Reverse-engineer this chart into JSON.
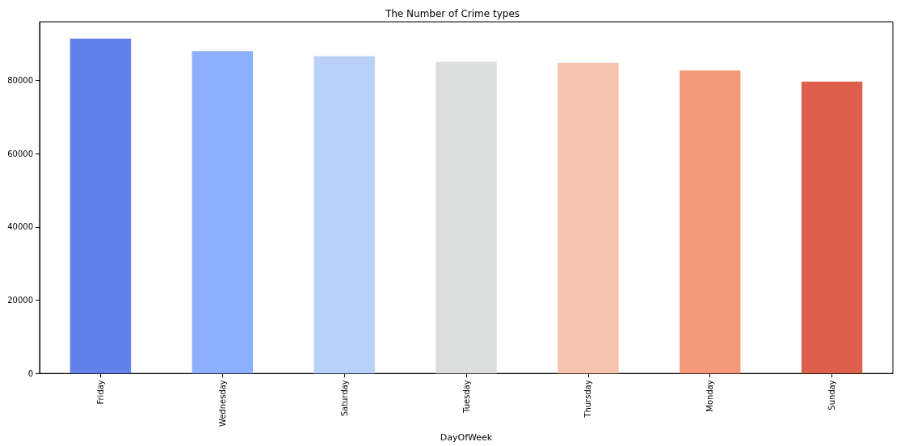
{
  "chart_data": {
    "type": "bar",
    "title": "The Number of Crime types",
    "xlabel": "DayOfWeek",
    "categories": [
      "Friday",
      "Wednesday",
      "Saturday",
      "Tuesday",
      "Thursday",
      "Monday",
      "Sunday"
    ],
    "values": [
      91400,
      88000,
      86600,
      85100,
      84800,
      82700,
      79700
    ],
    "colors": [
      "#6282ea",
      "#8db0fe",
      "#b9d0f9",
      "#dcdddd",
      "#f5c4ac",
      "#f39879",
      "#dd604d"
    ],
    "ylim": [
      0,
      96000
    ],
    "yticks": [
      0,
      20000,
      40000,
      60000,
      80000
    ],
    "grid": false
  }
}
